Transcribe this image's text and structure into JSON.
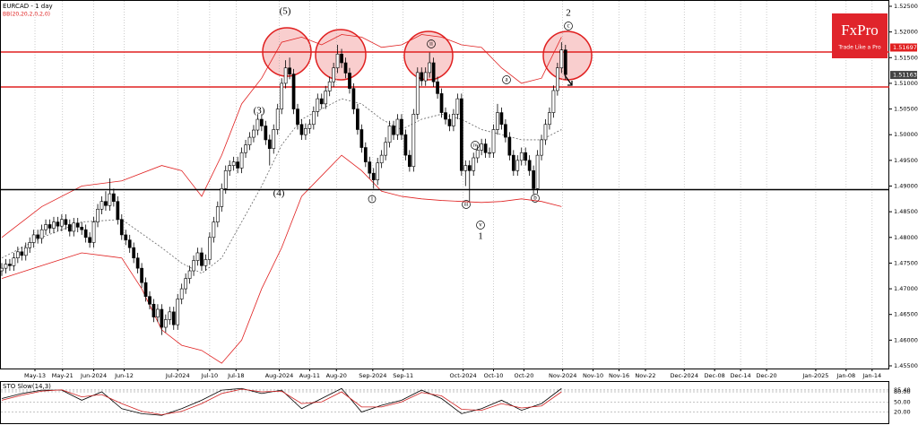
{
  "chart_data": [
    {
      "type": "candlestick",
      "title": "EURCAD - 1 day",
      "subtitle": "BB(20,20,2,0,2,0)",
      "xlim": [
        0,
        222
      ],
      "xticks": [
        {
          "value": 8.3,
          "label": "May-13"
        },
        {
          "value": 15.2,
          "label": "May-21"
        },
        {
          "value": 23,
          "label": "Jun-2024"
        },
        {
          "value": 30.6,
          "label": "Jun-12"
        },
        {
          "value": 44,
          "label": "Jul-2024"
        },
        {
          "value": 52,
          "label": "Jul-10"
        },
        {
          "value": 58.6,
          "label": "Jul-18"
        },
        {
          "value": 69.4,
          "label": "Aug-2024"
        },
        {
          "value": 77,
          "label": "Aug-11"
        },
        {
          "value": 83.7,
          "label": "Aug-20"
        },
        {
          "value": 92.8,
          "label": "Sep-2024"
        },
        {
          "value": 100.4,
          "label": "Sep-11"
        },
        {
          "value": 115.4,
          "label": "Oct-2024"
        },
        {
          "value": 123,
          "label": "Oct-10"
        },
        {
          "value": 130.6,
          "label": "Oct-20"
        },
        {
          "value": 140.3,
          "label": "Nov-2024"
        },
        {
          "value": 147.9,
          "label": "Nov-10"
        },
        {
          "value": 154.4,
          "label": "Nov-16"
        },
        {
          "value": 161,
          "label": "Nov-22"
        },
        {
          "value": 170.7,
          "label": "Dec-2024"
        },
        {
          "value": 178.3,
          "label": "Dec-08"
        },
        {
          "value": 184.8,
          "label": "Dec-14"
        },
        {
          "value": 191.3,
          "label": "Dec-20"
        },
        {
          "value": 203.6,
          "label": "Jan-2025"
        },
        {
          "value": 211.2,
          "label": "Jan-08"
        },
        {
          "value": 217.7,
          "label": "Jan-14"
        }
      ],
      "ylim": [
        1.455,
        1.525
      ],
      "yticks": [
        {
          "value": 1.455,
          "label": "1.45500"
        },
        {
          "value": 1.46,
          "label": "1.46000"
        },
        {
          "value": 1.465,
          "label": "1.46500"
        },
        {
          "value": 1.47,
          "label": "1.47000"
        },
        {
          "value": 1.475,
          "label": "1.47500"
        },
        {
          "value": 1.48,
          "label": "1.48000"
        },
        {
          "value": 1.485,
          "label": "1.48500"
        },
        {
          "value": 1.49,
          "label": "1.49000"
        },
        {
          "value": 1.495,
          "label": "1.49500"
        },
        {
          "value": 1.5,
          "label": "1.50000"
        },
        {
          "value": 1.505,
          "label": "1.50500"
        },
        {
          "value": 1.51,
          "label": "1.51000"
        },
        {
          "value": 1.515,
          "label": "1.51500"
        },
        {
          "value": 1.52,
          "label": "1.52000"
        },
        {
          "value": 1.525,
          "label": "1.52500"
        }
      ],
      "open": [
        1.4735,
        1.474,
        1.4748,
        1.4745,
        1.476,
        1.4772,
        1.4765,
        1.478,
        1.479,
        1.4805,
        1.4798,
        1.4815,
        1.4825,
        1.4818,
        1.483,
        1.4822,
        1.4835,
        1.4825,
        1.4812,
        1.4828,
        1.482,
        1.4815,
        1.48,
        1.479,
        1.483,
        1.4855,
        1.487,
        1.4862,
        1.4885,
        1.487,
        1.4835,
        1.4805,
        1.4795,
        1.478,
        1.476,
        1.474,
        1.4712,
        1.4685,
        1.467,
        1.4645,
        1.466,
        1.4625,
        1.464,
        1.4655,
        1.463,
        1.468,
        1.47,
        1.472,
        1.4735,
        1.4755,
        1.477,
        1.4745,
        1.4757,
        1.48,
        1.483,
        1.486,
        1.4895,
        1.493,
        1.494,
        1.4947,
        1.4935,
        1.4965,
        1.498,
        1.4995,
        1.5009,
        1.503,
        1.5017,
        1.499,
        1.4973,
        1.501,
        1.505,
        1.51,
        1.513,
        1.5118,
        1.505,
        1.502,
        1.5,
        1.5012,
        1.502,
        1.5045,
        1.507,
        1.506,
        1.5085,
        1.5103,
        1.513,
        1.5157,
        1.514,
        1.512,
        1.509,
        1.505,
        1.501,
        1.4975,
        1.4947,
        1.4925,
        1.4912,
        1.4945,
        1.496,
        1.4985,
        1.5017,
        1.5,
        1.503,
        1.5,
        1.496,
        1.4938,
        1.504,
        1.5121,
        1.5105,
        1.5121,
        1.514,
        1.5103,
        1.508,
        1.5043,
        1.503,
        1.5017,
        1.504,
        1.507,
        1.493,
        1.494,
        1.493,
        1.4955,
        1.497,
        1.4982,
        1.4965,
        1.4965,
        1.501,
        1.5043,
        1.502,
        1.4995,
        1.496,
        1.493,
        1.495,
        1.4965,
        1.495,
        1.493,
        1.4895,
        1.496,
        1.499,
        1.502,
        1.5043,
        1.5086,
        1.513,
        1.5165
      ],
      "high": [
        1.475,
        1.4758,
        1.4758,
        1.477,
        1.4782,
        1.4782,
        1.479,
        1.48,
        1.4815,
        1.4815,
        1.4825,
        1.4835,
        1.4835,
        1.484,
        1.484,
        1.4845,
        1.4845,
        1.4835,
        1.4838,
        1.4838,
        1.483,
        1.4825,
        1.481,
        1.484,
        1.4865,
        1.488,
        1.489,
        1.4915,
        1.4895,
        1.488,
        1.4845,
        1.4815,
        1.4805,
        1.479,
        1.477,
        1.475,
        1.4722,
        1.4695,
        1.468,
        1.467,
        1.467,
        1.465,
        1.4665,
        1.4665,
        1.469,
        1.471,
        1.473,
        1.4745,
        1.4765,
        1.478,
        1.478,
        1.4767,
        1.481,
        1.484,
        1.487,
        1.4905,
        1.494,
        1.495,
        1.4957,
        1.4957,
        1.4975,
        1.499,
        1.5005,
        1.5019,
        1.504,
        1.504,
        1.5027,
        1.5,
        1.502,
        1.506,
        1.511,
        1.5145,
        1.515,
        1.5128,
        1.506,
        1.503,
        1.5022,
        1.503,
        1.5055,
        1.508,
        1.508,
        1.5095,
        1.5113,
        1.514,
        1.5175,
        1.5167,
        1.515,
        1.513,
        1.51,
        1.506,
        1.502,
        1.4985,
        1.4957,
        1.4935,
        1.4955,
        1.497,
        1.4995,
        1.5027,
        1.5027,
        1.504,
        1.504,
        1.501,
        1.497,
        1.505,
        1.5131,
        1.5131,
        1.5131,
        1.516,
        1.515,
        1.5113,
        1.509,
        1.5053,
        1.504,
        1.505,
        1.508,
        1.508,
        1.495,
        1.495,
        1.4965,
        1.498,
        1.4992,
        1.4992,
        1.4975,
        1.502,
        1.506,
        1.5053,
        1.503,
        1.5005,
        1.497,
        1.496,
        1.4975,
        1.4975,
        1.496,
        1.494,
        1.497,
        1.5,
        1.503,
        1.5053,
        1.5096,
        1.514,
        1.518,
        1.5175
      ],
      "low": [
        1.4725,
        1.473,
        1.4735,
        1.4735,
        1.475,
        1.4755,
        1.4755,
        1.477,
        1.478,
        1.4788,
        1.4788,
        1.4805,
        1.4808,
        1.4808,
        1.4812,
        1.4812,
        1.4815,
        1.4802,
        1.4802,
        1.481,
        1.4805,
        1.479,
        1.478,
        1.478,
        1.482,
        1.4845,
        1.4852,
        1.4852,
        1.486,
        1.4825,
        1.4795,
        1.4785,
        1.477,
        1.475,
        1.473,
        1.4702,
        1.4675,
        1.466,
        1.4635,
        1.4635,
        1.461,
        1.4615,
        1.463,
        1.462,
        1.462,
        1.467,
        1.469,
        1.471,
        1.4725,
        1.4745,
        1.4735,
        1.4735,
        1.4747,
        1.479,
        1.482,
        1.485,
        1.4885,
        1.492,
        1.493,
        1.4925,
        1.4925,
        1.4955,
        1.497,
        1.4985,
        1.4999,
        1.5007,
        1.498,
        1.494,
        1.4963,
        1.5,
        1.504,
        1.509,
        1.5108,
        1.504,
        1.501,
        1.499,
        1.499,
        1.5002,
        1.501,
        1.5035,
        1.505,
        1.505,
        1.5075,
        1.5093,
        1.512,
        1.513,
        1.511,
        1.508,
        1.504,
        1.5,
        1.4965,
        1.4937,
        1.4915,
        1.4895,
        1.4902,
        1.4935,
        1.495,
        1.4975,
        1.499,
        1.499,
        1.499,
        1.495,
        1.4928,
        1.4928,
        1.503,
        1.5095,
        1.5095,
        1.5111,
        1.5093,
        1.507,
        1.5033,
        1.502,
        1.5007,
        1.5007,
        1.503,
        1.492,
        1.49,
        1.487,
        1.492,
        1.4945,
        1.496,
        1.4955,
        1.4955,
        1.4955,
        1.5,
        1.501,
        1.4985,
        1.495,
        1.492,
        1.492,
        1.494,
        1.494,
        1.492,
        1.4885,
        1.4885,
        1.495,
        1.498,
        1.501,
        1.5033,
        1.5076,
        1.512,
        1.5107
      ],
      "close": [
        1.474,
        1.4748,
        1.4745,
        1.476,
        1.4772,
        1.4765,
        1.478,
        1.479,
        1.4805,
        1.4798,
        1.4815,
        1.4825,
        1.4818,
        1.483,
        1.4822,
        1.4835,
        1.4825,
        1.4812,
        1.4828,
        1.482,
        1.4815,
        1.48,
        1.479,
        1.483,
        1.4855,
        1.487,
        1.4862,
        1.4885,
        1.487,
        1.4835,
        1.4805,
        1.4795,
        1.478,
        1.476,
        1.474,
        1.4712,
        1.4685,
        1.467,
        1.4645,
        1.466,
        1.4625,
        1.464,
        1.4655,
        1.463,
        1.468,
        1.47,
        1.472,
        1.4735,
        1.4755,
        1.477,
        1.4745,
        1.4757,
        1.48,
        1.483,
        1.486,
        1.4895,
        1.493,
        1.494,
        1.4947,
        1.4935,
        1.4965,
        1.498,
        1.4995,
        1.5009,
        1.503,
        1.5017,
        1.499,
        1.4973,
        1.501,
        1.505,
        1.51,
        1.513,
        1.5118,
        1.505,
        1.502,
        1.5,
        1.5012,
        1.502,
        1.5045,
        1.507,
        1.506,
        1.5085,
        1.5103,
        1.513,
        1.5157,
        1.514,
        1.512,
        1.509,
        1.505,
        1.501,
        1.4975,
        1.4947,
        1.4925,
        1.4912,
        1.4945,
        1.496,
        1.4985,
        1.5017,
        1.5,
        1.503,
        1.5,
        1.496,
        1.4938,
        1.504,
        1.5121,
        1.5105,
        1.5121,
        1.514,
        1.5103,
        1.508,
        1.5043,
        1.503,
        1.5017,
        1.504,
        1.507,
        1.493,
        1.494,
        1.493,
        1.4955,
        1.497,
        1.4982,
        1.4965,
        1.4965,
        1.501,
        1.5043,
        1.502,
        1.4995,
        1.496,
        1.493,
        1.495,
        1.4965,
        1.495,
        1.493,
        1.4895,
        1.496,
        1.499,
        1.502,
        1.5043,
        1.5086,
        1.513,
        1.5165,
        1.5117
      ],
      "overlays": [
        {
          "color": "#e02020",
          "x": [
            0,
            10,
            20,
            30,
            40,
            45,
            50,
            55,
            60,
            65,
            70,
            75,
            80,
            85,
            90,
            95,
            100,
            105,
            110,
            115,
            120,
            125,
            130,
            135,
            140
          ],
          "values": [
            1.48,
            1.486,
            1.49,
            1.491,
            1.494,
            1.493,
            1.488,
            1.496,
            1.506,
            1.511,
            1.518,
            1.519,
            1.5175,
            1.5195,
            1.519,
            1.517,
            1.5175,
            1.5195,
            1.519,
            1.5175,
            1.517,
            1.513,
            1.51,
            1.511,
            1.519
          ]
        },
        {
          "color": "#666666",
          "dashed": true,
          "x": [
            0,
            10,
            20,
            30,
            40,
            45,
            50,
            55,
            60,
            65,
            70,
            75,
            80,
            85,
            90,
            95,
            100,
            105,
            110,
            115,
            120,
            125,
            130,
            135,
            140
          ],
          "values": [
            1.476,
            1.48,
            1.483,
            1.4835,
            1.478,
            1.475,
            1.473,
            1.476,
            1.483,
            1.49,
            1.498,
            1.503,
            1.505,
            1.507,
            1.506,
            1.503,
            1.501,
            1.503,
            1.504,
            1.503,
            1.501,
            1.5,
            1.499,
            1.499,
            1.501
          ]
        },
        {
          "color": "#e02020",
          "x": [
            0,
            10,
            20,
            30,
            35,
            40,
            45,
            50,
            55,
            60,
            65,
            70,
            75,
            80,
            85,
            90,
            95,
            100,
            105,
            110,
            115,
            120,
            125,
            130,
            135,
            140
          ],
          "values": [
            1.472,
            1.4745,
            1.477,
            1.476,
            1.47,
            1.462,
            1.459,
            1.458,
            1.4555,
            1.46,
            1.47,
            1.478,
            1.488,
            1.492,
            1.496,
            1.493,
            1.489,
            1.488,
            1.4875,
            1.4872,
            1.487,
            1.4868,
            1.487,
            1.4875,
            1.487,
            1.486
          ]
        }
      ],
      "levels": [
        {
          "value": 1.5161,
          "color": "#e02020"
        },
        {
          "value": 1.5093,
          "color": "#e02020"
        },
        {
          "value": 1.4893,
          "color": "#000000"
        }
      ],
      "price_labels": [
        {
          "value": 1.51697,
          "color": "#e02020"
        },
        {
          "value": 1.51163,
          "color": "#444444"
        }
      ],
      "annotations": [
        "(5)",
        "(3)",
        "(4)",
        "i",
        "ii",
        "iii",
        "iv",
        "v",
        "1",
        "a",
        "b",
        "c",
        "2"
      ],
      "logo": {
        "title": "FxPro",
        "subtitle": "Trade Like a Pro"
      }
    },
    {
      "type": "line",
      "title": "STO Slow(14,3)",
      "xlim": [
        0,
        222
      ],
      "ylim": [
        0,
        100
      ],
      "yticks": [
        {
          "value": 85.4,
          "label": "85.40"
        },
        {
          "value": 80,
          "label": "80.00"
        },
        {
          "value": 50,
          "label": "50.00"
        },
        {
          "value": 20,
          "label": "20.00"
        }
      ],
      "x": [
        0,
        5,
        10,
        15,
        20,
        25,
        30,
        35,
        40,
        45,
        50,
        55,
        60,
        65,
        70,
        75,
        80,
        85,
        90,
        95,
        100,
        105,
        110,
        115,
        120,
        125,
        130,
        135,
        140
      ],
      "series": [
        {
          "color": "#000000",
          "values": [
            60,
            75,
            85,
            85,
            55,
            80,
            30,
            15,
            10,
            30,
            55,
            85,
            90,
            75,
            85,
            30,
            60,
            90,
            20,
            40,
            55,
            85,
            60,
            15,
            30,
            55,
            25,
            45,
            90
          ]
        },
        {
          "color": "#d02020",
          "values": [
            55,
            70,
            82,
            86,
            65,
            72,
            45,
            22,
            12,
            22,
            45,
            75,
            88,
            80,
            82,
            45,
            50,
            80,
            35,
            35,
            50,
            78,
            68,
            28,
            25,
            45,
            32,
            38,
            80
          ]
        }
      ]
    }
  ]
}
